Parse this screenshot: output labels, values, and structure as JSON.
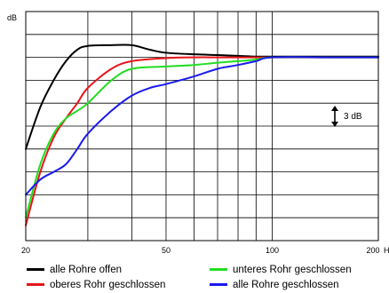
{
  "chart_data": {
    "type": "line",
    "ylabel": "dB",
    "xaxis": {
      "scale": "log",
      "range": [
        20,
        200
      ],
      "unit": "Hz",
      "tick_labels": [
        "20",
        "50",
        "100",
        "200"
      ],
      "gridlines": [
        20,
        30,
        40,
        50,
        60,
        70,
        80,
        90,
        100,
        200
      ]
    },
    "yaxis": {
      "range": [
        -24,
        6
      ],
      "gridlines_every_db": 3
    },
    "grid": true,
    "annotation": {
      "label": "3 dB",
      "span_db": 3
    },
    "legend_position": "bottom",
    "series": [
      {
        "name": "alle Rohre offen",
        "color": "#000000",
        "x": [
          20,
          22,
          24,
          26,
          28,
          30,
          35,
          40,
          45,
          50,
          60,
          70,
          80,
          90,
          100,
          120,
          150,
          200
        ],
        "y": [
          -12,
          -6.5,
          -3,
          -0.5,
          1,
          1.5,
          1.6,
          1.6,
          1.0,
          0.6,
          0.4,
          0.3,
          0.2,
          0.1,
          0.1,
          0.1,
          0.1,
          0.1
        ]
      },
      {
        "name": "oberes Rohr geschlossen",
        "color": "#e8141a",
        "x": [
          20,
          22,
          24,
          26,
          28,
          30,
          35,
          40,
          50,
          60,
          70,
          80,
          100,
          150,
          200
        ],
        "y": [
          -22,
          -15,
          -10.5,
          -8,
          -6,
          -4,
          -1.5,
          -0.5,
          -0.1,
          0.0,
          0.0,
          0.0,
          0.0,
          0.0,
          0.0
        ]
      },
      {
        "name": "unteres Rohr geschlossen",
        "color": "#22dd22",
        "x": [
          20,
          22,
          24,
          26,
          28,
          30,
          35,
          40,
          50,
          60,
          70,
          80,
          90,
          100,
          150,
          200
        ],
        "y": [
          -21,
          -14,
          -10,
          -8,
          -7,
          -6,
          -3,
          -1.5,
          -1.2,
          -1.0,
          -0.7,
          -0.5,
          -0.3,
          0.0,
          0.0,
          0.0
        ]
      },
      {
        "name": "alle Rohre geschlossen",
        "color": "#1a1aee",
        "x": [
          20,
          22,
          24,
          26,
          28,
          30,
          35,
          40,
          45,
          50,
          60,
          70,
          80,
          90,
          100,
          150,
          200
        ],
        "y": [
          -18,
          -16,
          -15,
          -14,
          -12,
          -10,
          -7,
          -5,
          -4,
          -3.5,
          -2.5,
          -1.5,
          -1.0,
          -0.5,
          0.0,
          0.0,
          0.0
        ]
      }
    ]
  }
}
